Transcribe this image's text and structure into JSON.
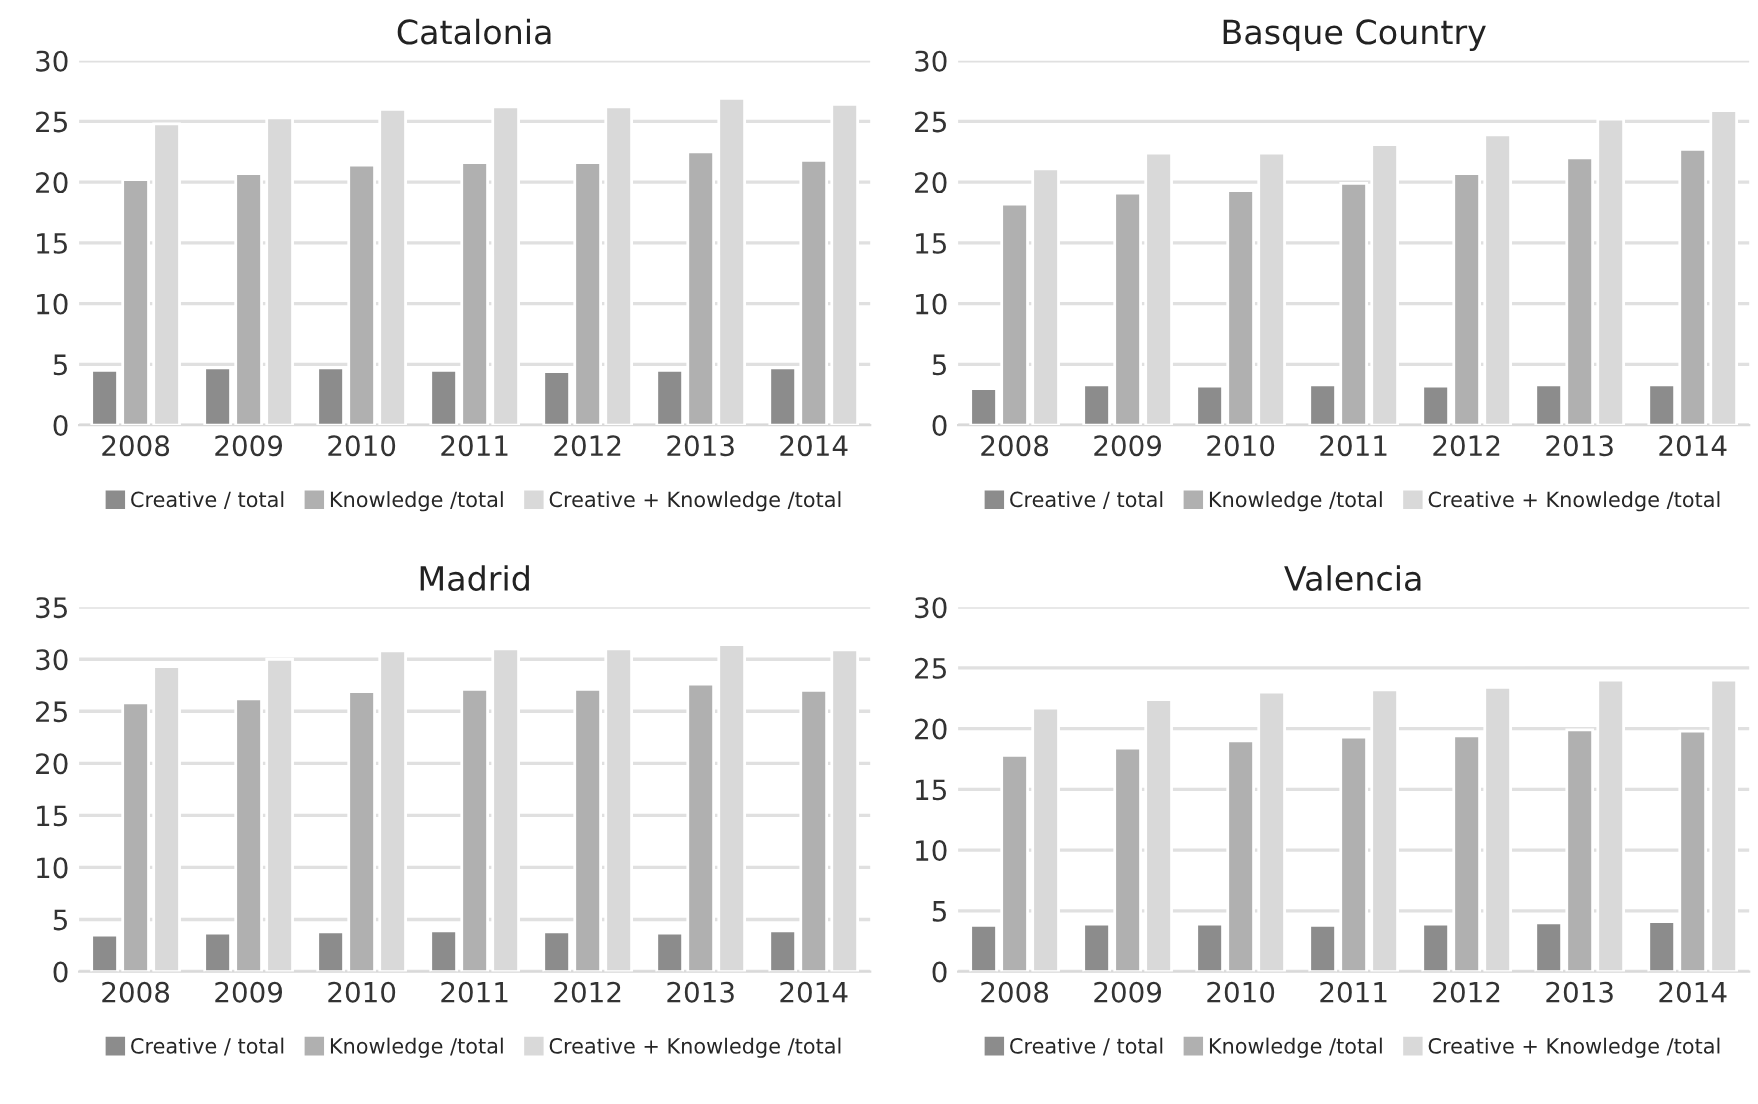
{
  "chart_data": [
    {
      "type": "bar",
      "title": "Catalonia",
      "categories": [
        "2008",
        "2009",
        "2010",
        "2011",
        "2012",
        "2013",
        "2014"
      ],
      "ylim": [
        0,
        30
      ],
      "yticks": [
        0,
        5,
        10,
        15,
        20,
        25,
        30
      ],
      "grid": "y",
      "legend": "bottom",
      "series": [
        {
          "name": "Creative / total",
          "color": "#8c8c8c",
          "values": [
            4.5,
            4.7,
            4.7,
            4.5,
            4.4,
            4.5,
            4.7
          ]
        },
        {
          "name": "Knowledge /total",
          "color": "#b0b0b0",
          "values": [
            20.2,
            20.7,
            21.4,
            21.6,
            21.6,
            22.5,
            21.8
          ]
        },
        {
          "name": "Creative + Knowledge /total",
          "color": "#d9d9d9",
          "values": [
            24.8,
            25.3,
            26.0,
            26.2,
            26.2,
            26.9,
            26.4
          ]
        }
      ]
    },
    {
      "type": "bar",
      "title": "Basque Country",
      "categories": [
        "2008",
        "2009",
        "2010",
        "2011",
        "2012",
        "2013",
        "2014"
      ],
      "ylim": [
        0,
        30
      ],
      "yticks": [
        0,
        5,
        10,
        15,
        20,
        25,
        30
      ],
      "grid": "y",
      "legend": "bottom",
      "series": [
        {
          "name": "Creative / total",
          "color": "#8c8c8c",
          "values": [
            3.0,
            3.3,
            3.2,
            3.3,
            3.2,
            3.3,
            3.3
          ]
        },
        {
          "name": "Knowledge /total",
          "color": "#b0b0b0",
          "values": [
            18.2,
            19.1,
            19.3,
            19.9,
            20.7,
            22.0,
            22.7
          ]
        },
        {
          "name": "Creative + Knowledge /total",
          "color": "#d9d9d9",
          "values": [
            21.1,
            22.4,
            22.4,
            23.1,
            23.9,
            25.2,
            25.9
          ]
        }
      ]
    },
    {
      "type": "bar",
      "title": "Madrid",
      "categories": [
        "2008",
        "2009",
        "2010",
        "2011",
        "2012",
        "2013",
        "2014"
      ],
      "ylim": [
        0,
        35
      ],
      "yticks": [
        0,
        5,
        10,
        15,
        20,
        25,
        30,
        35
      ],
      "grid": "y",
      "legend": "bottom",
      "series": [
        {
          "name": "Creative / total",
          "color": "#8c8c8c",
          "values": [
            3.5,
            3.7,
            3.8,
            3.9,
            3.8,
            3.7,
            3.9
          ]
        },
        {
          "name": "Knowledge /total",
          "color": "#b0b0b0",
          "values": [
            25.8,
            26.2,
            26.9,
            27.1,
            27.1,
            27.6,
            27.0
          ]
        },
        {
          "name": "Creative + Knowledge /total",
          "color": "#d9d9d9",
          "values": [
            29.3,
            30.0,
            30.8,
            31.0,
            31.0,
            31.4,
            30.9
          ]
        }
      ]
    },
    {
      "type": "bar",
      "title": "Valencia",
      "categories": [
        "2008",
        "2009",
        "2010",
        "2011",
        "2012",
        "2013",
        "2014"
      ],
      "ylim": [
        0,
        30
      ],
      "yticks": [
        0,
        5,
        10,
        15,
        20,
        25,
        30
      ],
      "grid": "y",
      "legend": "bottom",
      "series": [
        {
          "name": "Creative / total",
          "color": "#8c8c8c",
          "values": [
            3.8,
            3.9,
            3.9,
            3.8,
            3.9,
            4.0,
            4.1
          ]
        },
        {
          "name": "Knowledge /total",
          "color": "#b0b0b0",
          "values": [
            17.8,
            18.4,
            19.0,
            19.3,
            19.4,
            19.9,
            19.8
          ]
        },
        {
          "name": "Creative + Knowledge /total",
          "color": "#d9d9d9",
          "values": [
            21.7,
            22.4,
            23.0,
            23.2,
            23.4,
            24.0,
            24.0
          ]
        }
      ]
    }
  ]
}
